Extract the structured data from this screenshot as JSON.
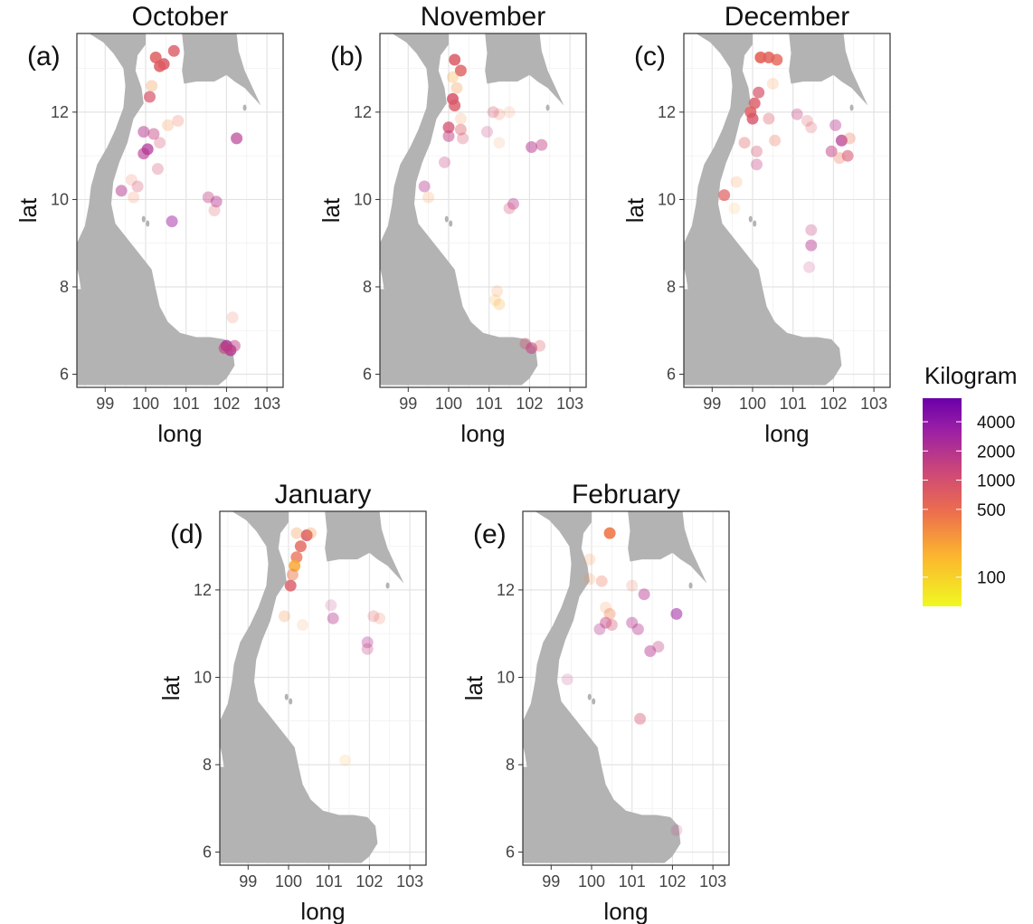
{
  "chart_data": {
    "type": "scatter",
    "x_name": "long",
    "y_name": "lat",
    "x_ticks": [
      99,
      100,
      101,
      102,
      103
    ],
    "y_ticks": [
      6,
      8,
      10,
      12
    ],
    "xlim": [
      98.3,
      103.4
    ],
    "ylim": [
      5.7,
      13.8
    ],
    "grid": true,
    "background_map": "Gulf of Thailand coastline (grey land)",
    "color_scale": {
      "title": "Kilogram",
      "scale": "log",
      "ticks": [
        {
          "value": 100,
          "label": "100"
        },
        {
          "value": 500,
          "label": "500"
        },
        {
          "value": 1000,
          "label": "1000"
        },
        {
          "value": 2000,
          "label": "2000"
        },
        {
          "value": 4000,
          "label": "4000"
        }
      ],
      "range": [
        50,
        7000
      ],
      "colors": [
        "#f0f921",
        "#fbb32f",
        "#ed6f4d",
        "#cc4778",
        "#9a1fa6",
        "#6a00a8"
      ]
    },
    "legend_position": "right",
    "panels": [
      {
        "label": "(a)",
        "title": "October",
        "points": [
          {
            "x": 100.25,
            "y": 13.25,
            "kg": 700,
            "a": 0.85
          },
          {
            "x": 100.45,
            "y": 13.1,
            "kg": 800,
            "a": 0.85
          },
          {
            "x": 100.35,
            "y": 13.05,
            "kg": 750,
            "a": 0.85
          },
          {
            "x": 100.7,
            "y": 13.4,
            "kg": 800,
            "a": 0.8
          },
          {
            "x": 100.1,
            "y": 12.35,
            "kg": 900,
            "a": 0.7
          },
          {
            "x": 100.15,
            "y": 12.6,
            "kg": 300,
            "a": 0.3
          },
          {
            "x": 99.95,
            "y": 11.55,
            "kg": 2000,
            "a": 0.5
          },
          {
            "x": 100.2,
            "y": 11.5,
            "kg": 1500,
            "a": 0.45
          },
          {
            "x": 100.05,
            "y": 11.15,
            "kg": 2300,
            "a": 0.7
          },
          {
            "x": 99.95,
            "y": 11.05,
            "kg": 2000,
            "a": 0.6
          },
          {
            "x": 100.35,
            "y": 11.3,
            "kg": 1000,
            "a": 0.3
          },
          {
            "x": 100.55,
            "y": 11.7,
            "kg": 300,
            "a": 0.25
          },
          {
            "x": 100.8,
            "y": 11.8,
            "kg": 500,
            "a": 0.25
          },
          {
            "x": 100.3,
            "y": 10.7,
            "kg": 1000,
            "a": 0.3
          },
          {
            "x": 99.4,
            "y": 10.2,
            "kg": 2000,
            "a": 0.5
          },
          {
            "x": 99.65,
            "y": 10.45,
            "kg": 500,
            "a": 0.2
          },
          {
            "x": 99.8,
            "y": 10.3,
            "kg": 1000,
            "a": 0.3
          },
          {
            "x": 99.7,
            "y": 10.05,
            "kg": 400,
            "a": 0.2
          },
          {
            "x": 102.25,
            "y": 11.4,
            "kg": 2000,
            "a": 0.65
          },
          {
            "x": 101.55,
            "y": 10.05,
            "kg": 1500,
            "a": 0.4
          },
          {
            "x": 101.75,
            "y": 9.95,
            "kg": 2000,
            "a": 0.45
          },
          {
            "x": 101.7,
            "y": 9.75,
            "kg": 800,
            "a": 0.25
          },
          {
            "x": 100.65,
            "y": 9.5,
            "kg": 3000,
            "a": 0.5
          },
          {
            "x": 102.0,
            "y": 6.65,
            "kg": 2500,
            "a": 0.8
          },
          {
            "x": 102.1,
            "y": 6.55,
            "kg": 2000,
            "a": 0.8
          },
          {
            "x": 101.95,
            "y": 6.6,
            "kg": 1500,
            "a": 0.6
          },
          {
            "x": 102.2,
            "y": 6.65,
            "kg": 1500,
            "a": 0.5
          },
          {
            "x": 102.15,
            "y": 7.3,
            "kg": 500,
            "a": 0.2
          }
        ]
      },
      {
        "label": "(b)",
        "title": "November",
        "points": [
          {
            "x": 100.15,
            "y": 13.2,
            "kg": 800,
            "a": 0.85
          },
          {
            "x": 100.3,
            "y": 12.95,
            "kg": 700,
            "a": 0.8
          },
          {
            "x": 100.1,
            "y": 12.8,
            "kg": 200,
            "a": 0.3
          },
          {
            "x": 100.1,
            "y": 12.3,
            "kg": 900,
            "a": 0.85
          },
          {
            "x": 100.15,
            "y": 12.15,
            "kg": 800,
            "a": 0.8
          },
          {
            "x": 100.2,
            "y": 12.55,
            "kg": 300,
            "a": 0.3
          },
          {
            "x": 100.0,
            "y": 11.65,
            "kg": 1000,
            "a": 0.75
          },
          {
            "x": 100.0,
            "y": 11.45,
            "kg": 1500,
            "a": 0.5
          },
          {
            "x": 100.3,
            "y": 11.6,
            "kg": 800,
            "a": 0.4
          },
          {
            "x": 100.35,
            "y": 11.4,
            "kg": 1000,
            "a": 0.3
          },
          {
            "x": 100.3,
            "y": 11.85,
            "kg": 300,
            "a": 0.2
          },
          {
            "x": 99.9,
            "y": 10.85,
            "kg": 1500,
            "a": 0.3
          },
          {
            "x": 101.1,
            "y": 12.0,
            "kg": 1000,
            "a": 0.3
          },
          {
            "x": 101.25,
            "y": 11.95,
            "kg": 500,
            "a": 0.2
          },
          {
            "x": 101.5,
            "y": 12.0,
            "kg": 400,
            "a": 0.15
          },
          {
            "x": 100.95,
            "y": 11.55,
            "kg": 1500,
            "a": 0.25
          },
          {
            "x": 101.25,
            "y": 11.3,
            "kg": 300,
            "a": 0.15
          },
          {
            "x": 102.05,
            "y": 11.2,
            "kg": 2000,
            "a": 0.5
          },
          {
            "x": 102.3,
            "y": 11.25,
            "kg": 1500,
            "a": 0.45
          },
          {
            "x": 99.4,
            "y": 10.3,
            "kg": 2000,
            "a": 0.4
          },
          {
            "x": 99.5,
            "y": 10.05,
            "kg": 300,
            "a": 0.2
          },
          {
            "x": 101.6,
            "y": 9.9,
            "kg": 2000,
            "a": 0.4
          },
          {
            "x": 101.5,
            "y": 9.8,
            "kg": 1000,
            "a": 0.3
          },
          {
            "x": 101.2,
            "y": 7.9,
            "kg": 300,
            "a": 0.2
          },
          {
            "x": 101.25,
            "y": 7.6,
            "kg": 200,
            "a": 0.25
          },
          {
            "x": 101.15,
            "y": 7.7,
            "kg": 200,
            "a": 0.2
          },
          {
            "x": 101.9,
            "y": 6.7,
            "kg": 1000,
            "a": 0.35
          },
          {
            "x": 102.05,
            "y": 6.6,
            "kg": 1500,
            "a": 0.55
          },
          {
            "x": 102.25,
            "y": 6.65,
            "kg": 800,
            "a": 0.3
          }
        ]
      },
      {
        "label": "(c)",
        "title": "December",
        "points": [
          {
            "x": 100.2,
            "y": 13.25,
            "kg": 600,
            "a": 0.9
          },
          {
            "x": 100.4,
            "y": 13.25,
            "kg": 650,
            "a": 0.85
          },
          {
            "x": 100.6,
            "y": 13.2,
            "kg": 600,
            "a": 0.8
          },
          {
            "x": 100.5,
            "y": 12.65,
            "kg": 300,
            "a": 0.2
          },
          {
            "x": 100.15,
            "y": 12.45,
            "kg": 900,
            "a": 0.7
          },
          {
            "x": 100.05,
            "y": 12.2,
            "kg": 800,
            "a": 0.8
          },
          {
            "x": 99.95,
            "y": 12.0,
            "kg": 700,
            "a": 0.85
          },
          {
            "x": 100.0,
            "y": 11.85,
            "kg": 900,
            "a": 0.8
          },
          {
            "x": 99.8,
            "y": 11.3,
            "kg": 700,
            "a": 0.35
          },
          {
            "x": 100.1,
            "y": 11.1,
            "kg": 1000,
            "a": 0.35
          },
          {
            "x": 100.1,
            "y": 10.8,
            "kg": 1500,
            "a": 0.35
          },
          {
            "x": 100.55,
            "y": 11.35,
            "kg": 500,
            "a": 0.3
          },
          {
            "x": 100.4,
            "y": 11.85,
            "kg": 800,
            "a": 0.35
          },
          {
            "x": 99.3,
            "y": 10.1,
            "kg": 700,
            "a": 0.7
          },
          {
            "x": 99.6,
            "y": 10.4,
            "kg": 300,
            "a": 0.2
          },
          {
            "x": 99.55,
            "y": 9.8,
            "kg": 200,
            "a": 0.15
          },
          {
            "x": 101.1,
            "y": 11.95,
            "kg": 1500,
            "a": 0.35
          },
          {
            "x": 101.35,
            "y": 11.8,
            "kg": 800,
            "a": 0.25
          },
          {
            "x": 101.45,
            "y": 11.65,
            "kg": 800,
            "a": 0.25
          },
          {
            "x": 102.05,
            "y": 11.7,
            "kg": 2000,
            "a": 0.4
          },
          {
            "x": 101.95,
            "y": 11.1,
            "kg": 1500,
            "a": 0.5
          },
          {
            "x": 102.2,
            "y": 11.35,
            "kg": 2000,
            "a": 0.7
          },
          {
            "x": 102.35,
            "y": 11.0,
            "kg": 1000,
            "a": 0.55
          },
          {
            "x": 102.15,
            "y": 10.95,
            "kg": 500,
            "a": 0.3
          },
          {
            "x": 102.4,
            "y": 11.4,
            "kg": 500,
            "a": 0.3
          },
          {
            "x": 101.45,
            "y": 9.3,
            "kg": 1500,
            "a": 0.3
          },
          {
            "x": 101.45,
            "y": 8.95,
            "kg": 2000,
            "a": 0.45
          },
          {
            "x": 101.4,
            "y": 8.45,
            "kg": 1500,
            "a": 0.2
          }
        ]
      },
      {
        "label": "(d)",
        "title": "January",
        "points": [
          {
            "x": 100.45,
            "y": 13.25,
            "kg": 800,
            "a": 0.85
          },
          {
            "x": 100.3,
            "y": 13.0,
            "kg": 600,
            "a": 0.8
          },
          {
            "x": 100.2,
            "y": 12.75,
            "kg": 500,
            "a": 0.75
          },
          {
            "x": 100.15,
            "y": 12.55,
            "kg": 200,
            "a": 0.85
          },
          {
            "x": 100.1,
            "y": 12.35,
            "kg": 400,
            "a": 0.5
          },
          {
            "x": 100.05,
            "y": 12.1,
            "kg": 800,
            "a": 0.8
          },
          {
            "x": 100.2,
            "y": 13.3,
            "kg": 300,
            "a": 0.3
          },
          {
            "x": 100.55,
            "y": 13.3,
            "kg": 300,
            "a": 0.3
          },
          {
            "x": 99.9,
            "y": 11.4,
            "kg": 300,
            "a": 0.25
          },
          {
            "x": 100.35,
            "y": 11.2,
            "kg": 300,
            "a": 0.15
          },
          {
            "x": 101.05,
            "y": 11.65,
            "kg": 1500,
            "a": 0.2
          },
          {
            "x": 101.1,
            "y": 11.35,
            "kg": 2000,
            "a": 0.4
          },
          {
            "x": 101.95,
            "y": 10.8,
            "kg": 2000,
            "a": 0.35
          },
          {
            "x": 101.95,
            "y": 10.65,
            "kg": 1500,
            "a": 0.3
          },
          {
            "x": 102.1,
            "y": 11.4,
            "kg": 800,
            "a": 0.25
          },
          {
            "x": 102.25,
            "y": 11.35,
            "kg": 500,
            "a": 0.2
          },
          {
            "x": 101.4,
            "y": 8.1,
            "kg": 200,
            "a": 0.15
          }
        ]
      },
      {
        "label": "(e)",
        "title": "February",
        "points": [
          {
            "x": 100.45,
            "y": 13.3,
            "kg": 400,
            "a": 0.9
          },
          {
            "x": 99.95,
            "y": 12.7,
            "kg": 300,
            "a": 0.2
          },
          {
            "x": 99.95,
            "y": 12.25,
            "kg": 300,
            "a": 0.2
          },
          {
            "x": 100.25,
            "y": 12.2,
            "kg": 500,
            "a": 0.3
          },
          {
            "x": 101.0,
            "y": 12.1,
            "kg": 500,
            "a": 0.2
          },
          {
            "x": 101.3,
            "y": 11.9,
            "kg": 2000,
            "a": 0.45
          },
          {
            "x": 100.35,
            "y": 11.6,
            "kg": 300,
            "a": 0.2
          },
          {
            "x": 100.45,
            "y": 11.45,
            "kg": 400,
            "a": 0.35
          },
          {
            "x": 100.35,
            "y": 11.25,
            "kg": 1500,
            "a": 0.45
          },
          {
            "x": 100.2,
            "y": 11.1,
            "kg": 2000,
            "a": 0.35
          },
          {
            "x": 100.5,
            "y": 11.2,
            "kg": 1000,
            "a": 0.35
          },
          {
            "x": 101.0,
            "y": 11.25,
            "kg": 2000,
            "a": 0.4
          },
          {
            "x": 101.15,
            "y": 11.1,
            "kg": 2000,
            "a": 0.4
          },
          {
            "x": 101.45,
            "y": 10.6,
            "kg": 2000,
            "a": 0.45
          },
          {
            "x": 101.65,
            "y": 10.7,
            "kg": 1500,
            "a": 0.35
          },
          {
            "x": 102.1,
            "y": 11.45,
            "kg": 3000,
            "a": 0.55
          },
          {
            "x": 99.4,
            "y": 9.95,
            "kg": 1500,
            "a": 0.2
          },
          {
            "x": 101.2,
            "y": 9.05,
            "kg": 1000,
            "a": 0.4
          },
          {
            "x": 102.1,
            "y": 6.5,
            "kg": 1500,
            "a": 0.2
          }
        ]
      }
    ]
  }
}
